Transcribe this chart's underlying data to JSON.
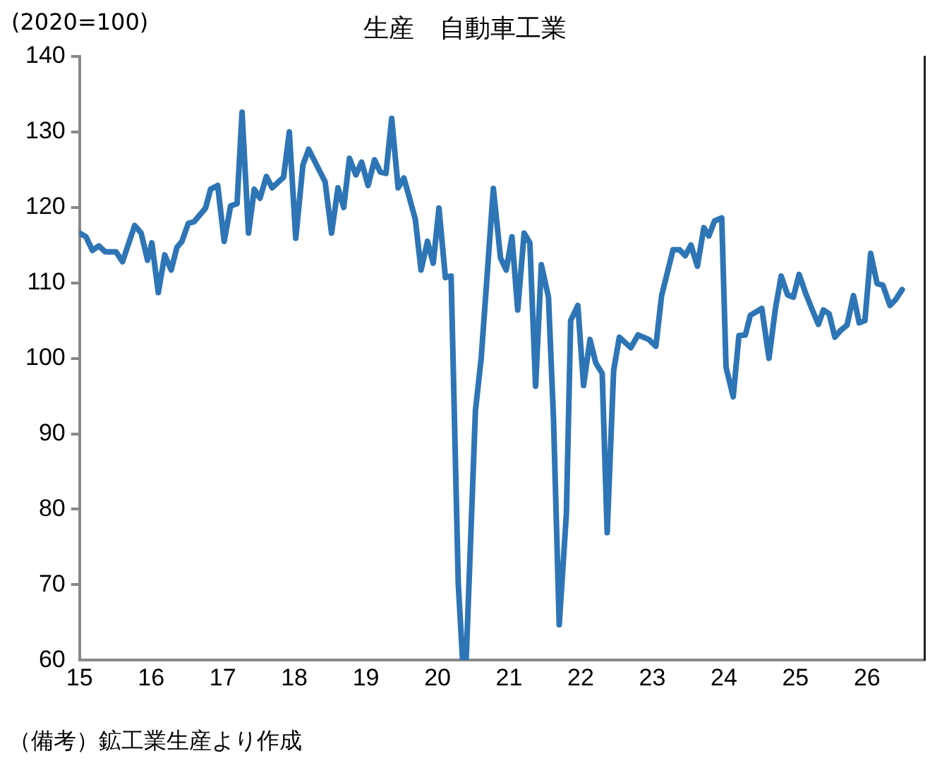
{
  "chart_data": {
    "type": "line",
    "title": "生産　自動車工業",
    "ylabel": "(2020=100)",
    "annotations": [
      "（備考）鉱工業生産より作成"
    ],
    "x": [
      15.0,
      15.09,
      15.18,
      15.27,
      15.36,
      15.51,
      15.6,
      15.77,
      15.86,
      15.95,
      16.01,
      16.1,
      16.19,
      16.28,
      16.36,
      16.43,
      16.52,
      16.6,
      16.76,
      16.83,
      16.93,
      17.02,
      17.11,
      17.2,
      17.27,
      17.36,
      17.44,
      17.52,
      17.61,
      17.69,
      17.85,
      17.93,
      18.02,
      18.12,
      18.2,
      18.43,
      18.52,
      18.61,
      18.69,
      18.77,
      18.86,
      18.94,
      19.03,
      19.12,
      19.2,
      19.28,
      19.36,
      19.45,
      19.53,
      19.61,
      19.69,
      19.77,
      19.86,
      19.94,
      20.02,
      20.11,
      20.19,
      20.29,
      20.35,
      20.4,
      20.53,
      20.61,
      20.78,
      20.88,
      20.96,
      21.04,
      21.12,
      21.21,
      21.29,
      21.37,
      21.45,
      21.55,
      21.62,
      21.7,
      21.8,
      21.86,
      21.96,
      22.04,
      22.13,
      22.21,
      22.3,
      22.37,
      22.46,
      22.54,
      22.7,
      22.8,
      22.95,
      23.05,
      23.13,
      23.29,
      23.38,
      23.46,
      23.54,
      23.63,
      23.72,
      23.79,
      23.87,
      23.97,
      24.03,
      24.13,
      24.21,
      24.3,
      24.37,
      24.53,
      24.63,
      24.72,
      24.8,
      24.89,
      24.97,
      25.05,
      25.15,
      25.24,
      25.32,
      25.39,
      25.47,
      25.55,
      25.63,
      25.72,
      25.81,
      25.89,
      25.97,
      26.05,
      26.14,
      26.22,
      26.32,
      26.4,
      26.49
    ],
    "series": [
      {
        "color": "#2e75b6",
        "values": [
          116.6,
          116.1,
          114.3,
          114.9,
          114.1,
          114.1,
          112.8,
          117.6,
          116.6,
          113.0,
          115.3,
          108.7,
          113.7,
          111.7,
          114.7,
          115.5,
          117.9,
          118.1,
          119.9,
          122.4,
          122.9,
          115.5,
          120.2,
          120.5,
          132.6,
          116.6,
          122.4,
          121.2,
          124.1,
          122.6,
          124.0,
          130.0,
          115.9,
          125.6,
          127.7,
          123.4,
          116.6,
          122.6,
          120.0,
          126.5,
          124.3,
          126.0,
          122.9,
          126.3,
          124.7,
          124.5,
          131.8,
          122.6,
          123.9,
          121.2,
          118.4,
          111.7,
          115.5,
          112.6,
          119.9,
          110.7,
          110.9,
          70.1,
          60.0,
          60.0,
          93.1,
          100.0,
          122.5,
          113.3,
          111.7,
          116.1,
          106.4,
          116.6,
          115.3,
          96.3,
          112.4,
          108.1,
          92.0,
          64.7,
          79.4,
          105.0,
          107.0,
          96.4,
          102.5,
          99.4,
          98.0,
          76.9,
          98.4,
          102.8,
          101.4,
          103.1,
          102.5,
          101.6,
          108.3,
          114.4,
          114.4,
          113.6,
          115.0,
          112.2,
          117.3,
          116.2,
          118.2,
          118.6,
          98.8,
          94.9,
          103.0,
          103.1,
          105.7,
          106.6,
          100.0,
          106.6,
          110.9,
          108.4,
          108.1,
          111.1,
          108.4,
          106.3,
          104.5,
          106.4,
          105.9,
          102.8,
          103.7,
          104.4,
          108.3,
          104.7,
          105.0,
          113.9,
          109.9,
          109.7,
          107.0,
          107.8,
          109.1
        ]
      }
    ],
    "xlim": [
      15,
      26.8
    ],
    "xticks": [
      15,
      16,
      17,
      18,
      19,
      20,
      21,
      22,
      23,
      24,
      25,
      26
    ],
    "ylim": [
      60,
      140
    ],
    "yticks": [
      60,
      70,
      80,
      90,
      100,
      110,
      120,
      130,
      140
    ],
    "grid": false,
    "legend": false,
    "marker": "none",
    "line_style": "solid"
  }
}
